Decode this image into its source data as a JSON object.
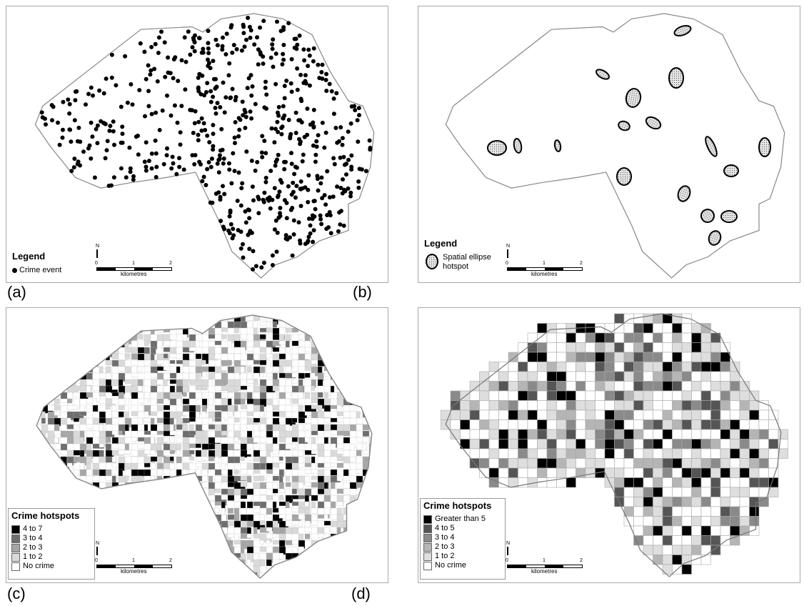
{
  "panel_labels": {
    "a": "(a)",
    "b": "(b)",
    "c": "(c)",
    "d": "(d)"
  },
  "scalebar": {
    "north": "N",
    "ticks": [
      "0",
      "1",
      "2"
    ],
    "unit": "kilometres"
  },
  "panel_a": {
    "legend_title": "Legend",
    "legend_item": "Crime event"
  },
  "panel_b": {
    "legend_title": "Legend",
    "legend_item_line1": "Spatial ellipse",
    "legend_item_line2": "hotspot"
  },
  "panel_c": {
    "legend_title": "Crime hotspots",
    "classes": [
      {
        "label": "4 to 7",
        "color": "#000000"
      },
      {
        "label": "3 to 4",
        "color": "#6e6e6e"
      },
      {
        "label": "2 to 3",
        "color": "#a6a6a6"
      },
      {
        "label": "1 to 2",
        "color": "#dadada"
      },
      {
        "label": "No crime",
        "color": "#ffffff"
      }
    ]
  },
  "panel_d": {
    "legend_title": "Crime hotspots",
    "classes": [
      {
        "label": "Greater than 5",
        "color": "#000000"
      },
      {
        "label": "4 to 5",
        "color": "#555555"
      },
      {
        "label": "3 to 4",
        "color": "#8a8a8a"
      },
      {
        "label": "2 to 3",
        "color": "#b5b5b5"
      },
      {
        "label": "1 to 2",
        "color": "#dedede"
      },
      {
        "label": "No crime",
        "color": "#ffffff"
      }
    ]
  }
}
